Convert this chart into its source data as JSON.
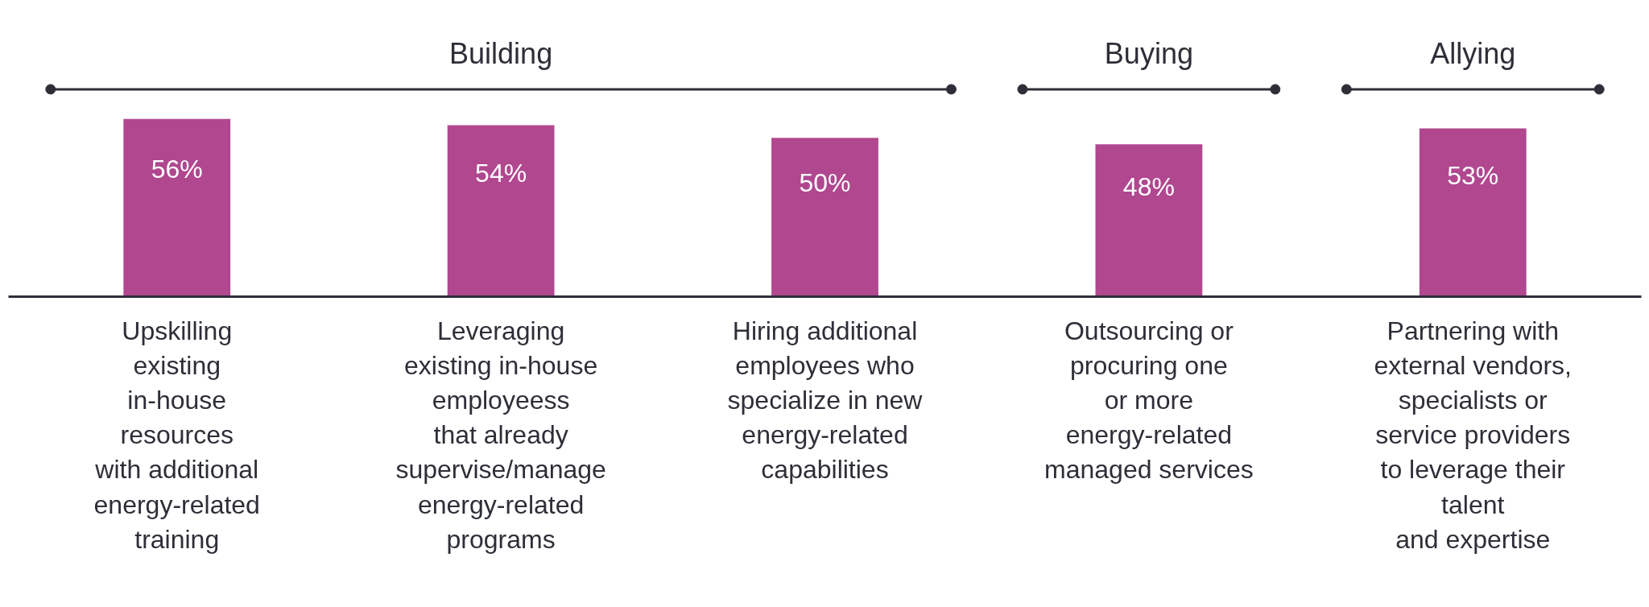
{
  "chart_data": {
    "type": "bar",
    "categories": [
      "Upskilling\nexisting\nin-house\nresources\nwith additional\nenergy-related\ntraining",
      "Leveraging\nexisting in-house\nemployeess\nthat already\nsupervise/manage\nenergy-related\nprograms",
      "Hiring additional\nemployees who\nspecialize in new\nenergy-related\ncapabilities",
      "Outsourcing or\nprocuring one\nor more\nenergy-related\nmanaged services",
      "Partnering with\nexternal vendors,\nspecialists or\nservice providers\nto leverage their\ntalent\nand expertise"
    ],
    "values": [
      56,
      54,
      50,
      48,
      53
    ],
    "color": "#b0478f",
    "value_labels": [
      "56%",
      "54%",
      "50%",
      "48%",
      "53%"
    ],
    "tick_labels": "x",
    "grid": false,
    "annotations": [
      "Building",
      "Buying",
      "Allying"
    ]
  }
}
